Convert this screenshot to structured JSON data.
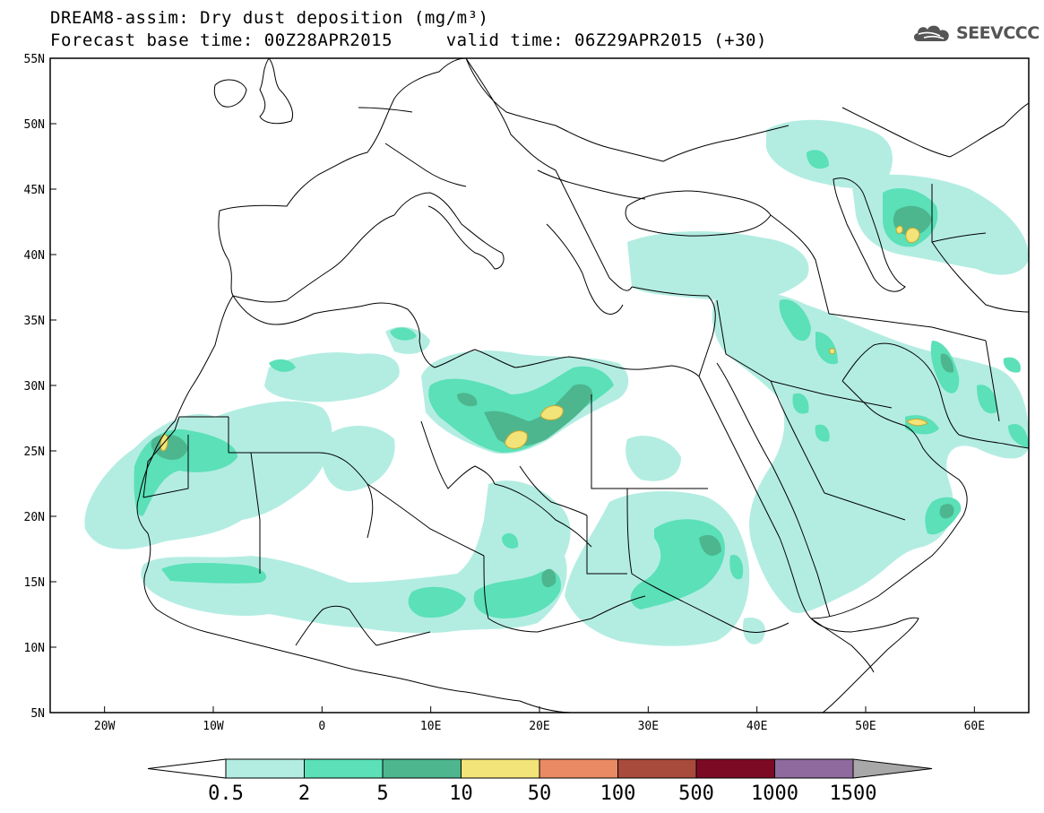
{
  "header": {
    "title_line_1": "DREAM8-assim: Dry dust deposition (mg/m³)",
    "title_line_2": "Forecast base time: 00Z28APR2015     valid time: 06Z29APR2015 (+30)"
  },
  "logo": {
    "text": "SEEVCCC",
    "icon": "cloud-icon"
  },
  "map": {
    "lon_range": [
      -25,
      65
    ],
    "lat_range": [
      5,
      55
    ],
    "lat_ticks": [
      {
        "value": 55,
        "label": "55N"
      },
      {
        "value": 50,
        "label": "50N"
      },
      {
        "value": 45,
        "label": "45N"
      },
      {
        "value": 40,
        "label": "40N"
      },
      {
        "value": 35,
        "label": "35N"
      },
      {
        "value": 30,
        "label": "30N"
      },
      {
        "value": 25,
        "label": "25N"
      },
      {
        "value": 20,
        "label": "20N"
      },
      {
        "value": 15,
        "label": "15N"
      },
      {
        "value": 10,
        "label": "10N"
      },
      {
        "value": 5,
        "label": "5N"
      }
    ],
    "lon_ticks": [
      {
        "value": -20,
        "label": "20W"
      },
      {
        "value": -10,
        "label": "10W"
      },
      {
        "value": 0,
        "label": "0"
      },
      {
        "value": 10,
        "label": "10E"
      },
      {
        "value": 20,
        "label": "20E"
      },
      {
        "value": 30,
        "label": "30E"
      },
      {
        "value": 40,
        "label": "40E"
      },
      {
        "value": 50,
        "label": "50E"
      },
      {
        "value": 60,
        "label": "60E"
      }
    ]
  },
  "legend": {
    "labels": [
      "0.5",
      "2",
      "5",
      "10",
      "50",
      "100",
      "500",
      "1000",
      "1500"
    ],
    "colors": [
      "#b3ede2",
      "#5be0b8",
      "#4db68e",
      "#f2e478",
      "#ea8a64",
      "#a84a3c",
      "#7c0a24",
      "#8e6a9e",
      "#a8a8a8"
    ],
    "under_color": "#ffffff"
  }
}
